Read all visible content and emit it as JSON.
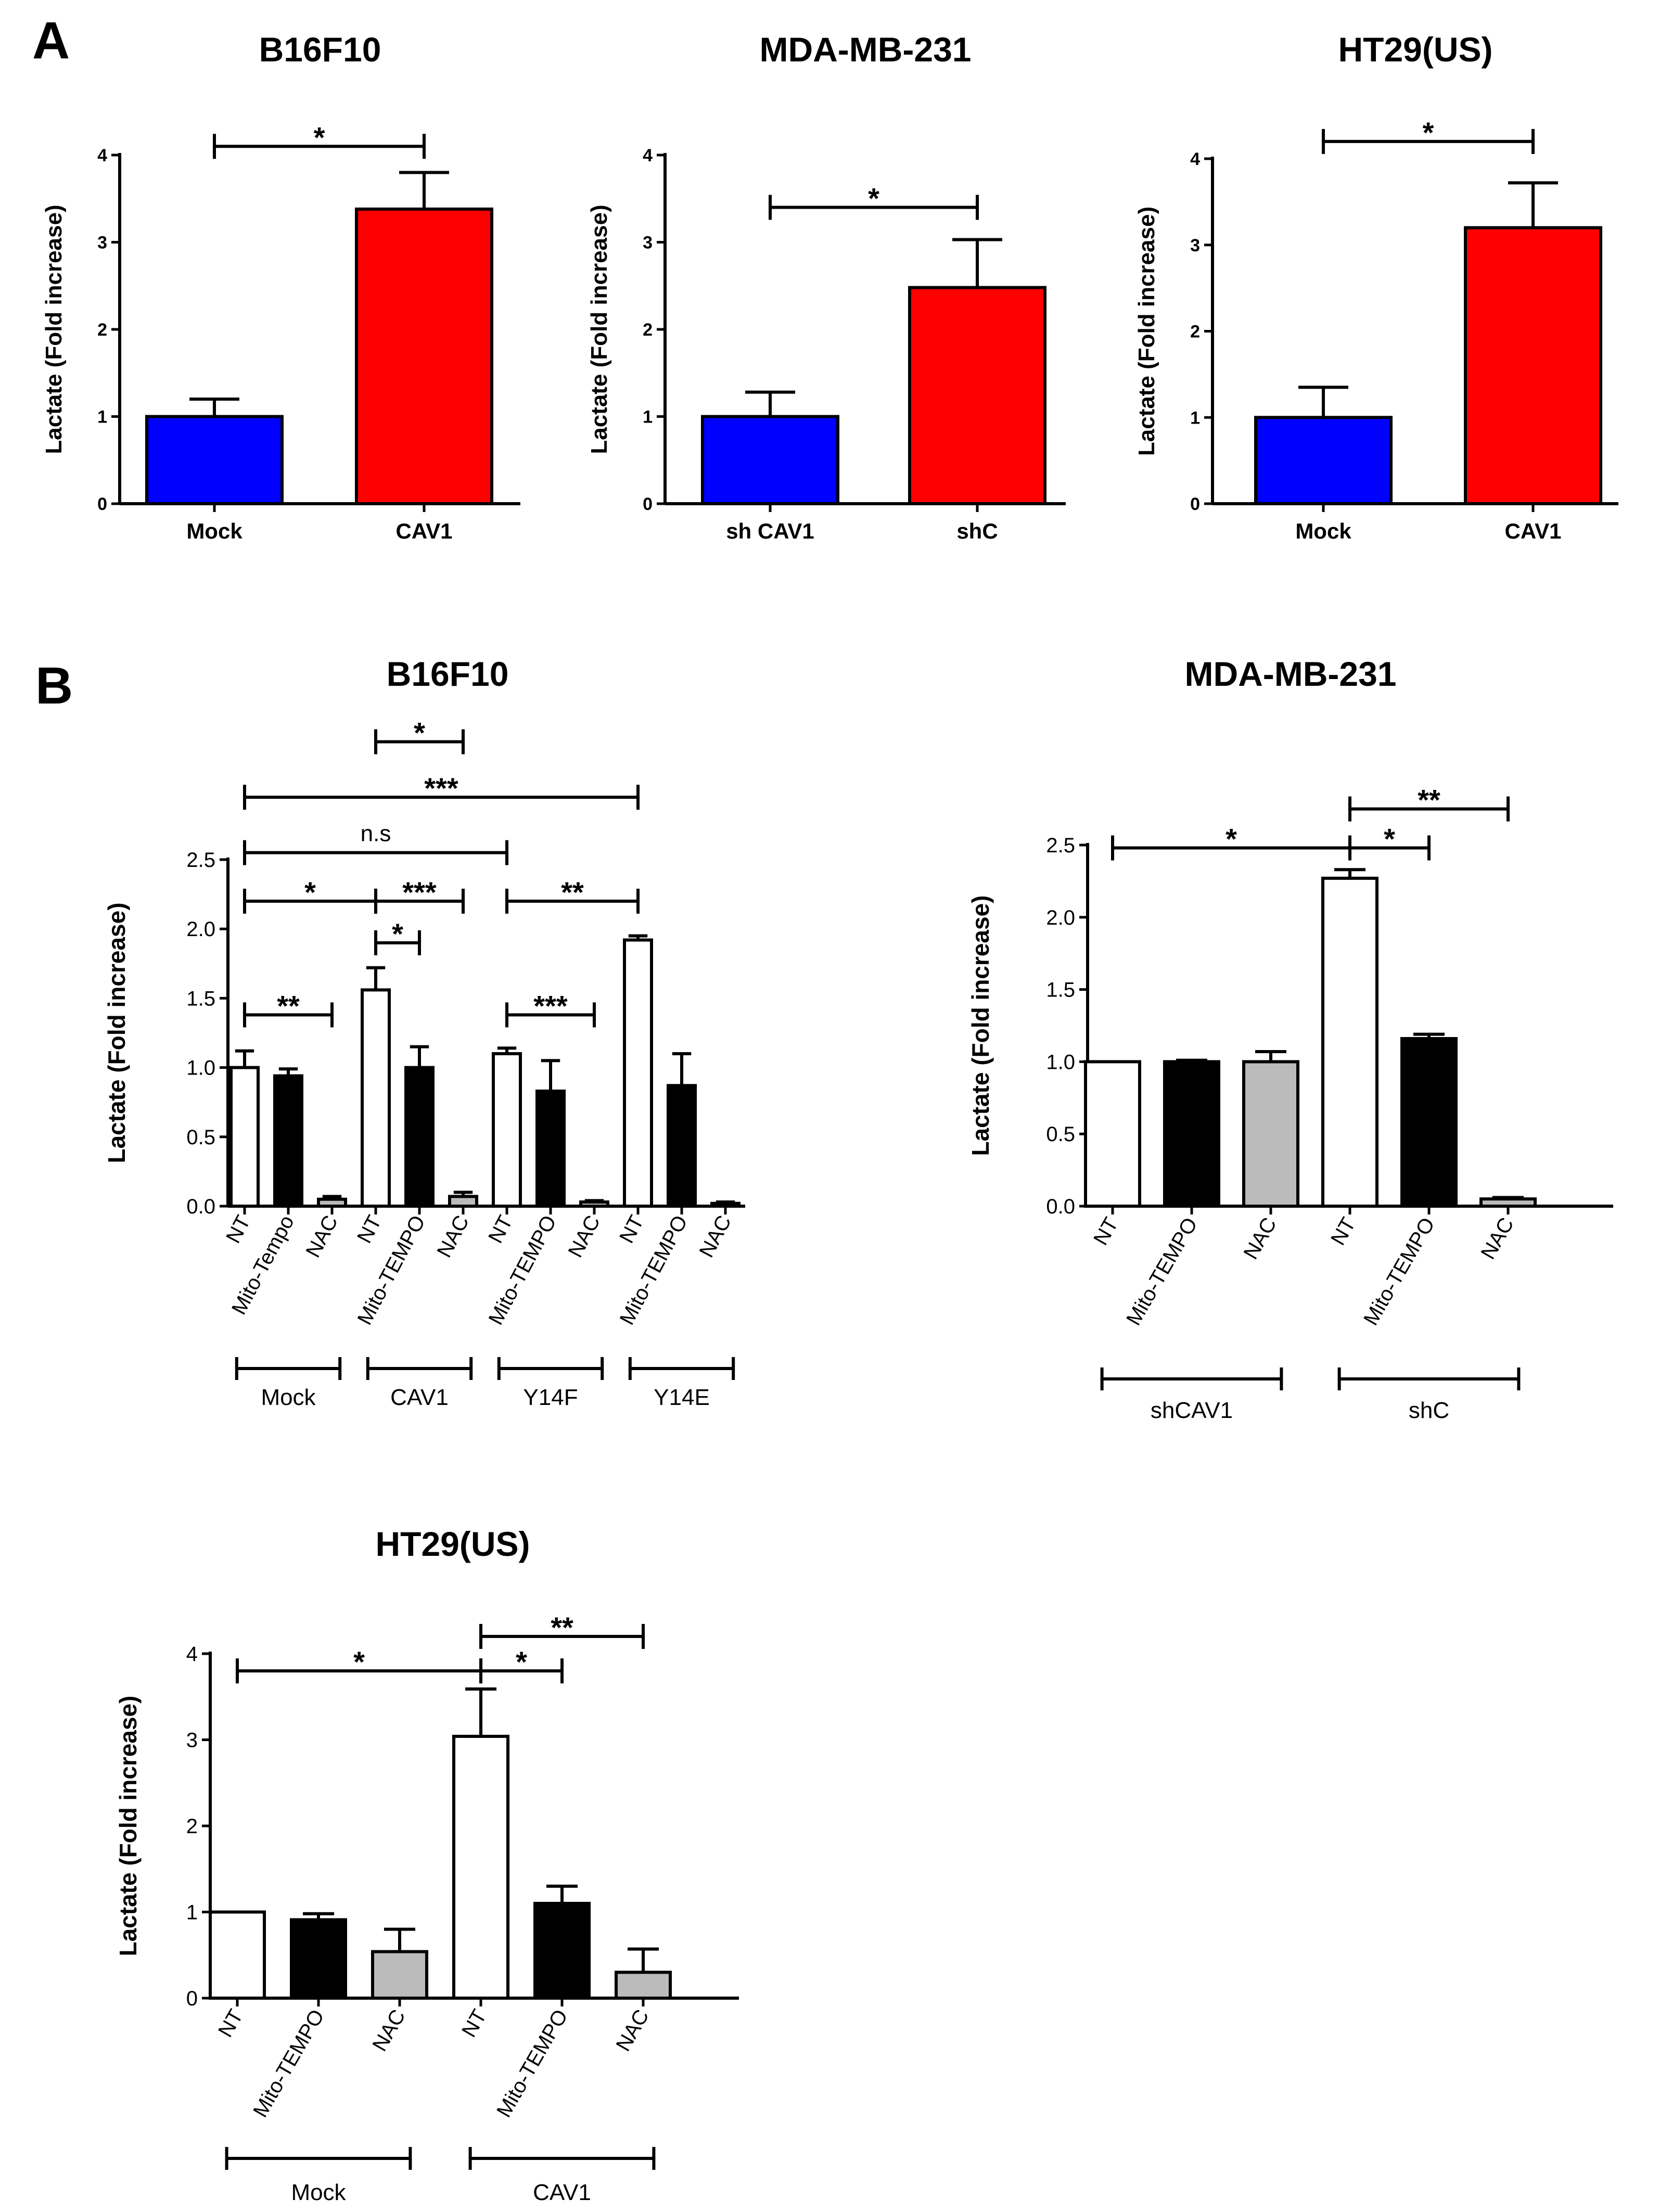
{
  "panel_labels": [
    "A",
    "B"
  ],
  "colors": {
    "blue": "#0000ff",
    "red": "#ff0000",
    "white": "#ffffff",
    "black": "#000000",
    "gray": "#bbbbbb"
  },
  "chart_data": [
    {
      "id": "A1",
      "type": "bar",
      "title": "B16F10",
      "ylabel": "Lactate (Fold increase)",
      "xlabel": "",
      "ylim": [
        0,
        4
      ],
      "yticks": [
        "0",
        "1",
        "2",
        "3",
        "4"
      ],
      "categories": [
        "Mock",
        "CAV1"
      ],
      "values": [
        1.0,
        3.38
      ],
      "errors": [
        0.2,
        0.42
      ],
      "fills": [
        "blue",
        "red"
      ],
      "significance": [
        {
          "from": 0,
          "to": 1,
          "level": 4.1,
          "label": "*"
        }
      ]
    },
    {
      "id": "A2",
      "type": "bar",
      "title": "MDA-MB-231",
      "ylabel": "Lactate (Fold increase)",
      "xlabel": "",
      "ylim": [
        0,
        4
      ],
      "yticks": [
        "0",
        "1",
        "2",
        "3",
        "4"
      ],
      "categories": [
        "sh CAV1",
        "shC"
      ],
      "values": [
        1.0,
        2.48
      ],
      "errors": [
        0.28,
        0.55
      ],
      "fills": [
        "blue",
        "red"
      ],
      "significance": [
        {
          "from": 0,
          "to": 1,
          "level": 3.4,
          "label": "*"
        }
      ]
    },
    {
      "id": "A3",
      "type": "bar",
      "title": "HT29(US)",
      "ylabel": "Lactate (Fold increase)",
      "xlabel": "",
      "ylim": [
        0,
        4
      ],
      "yticks": [
        "0",
        "1",
        "2",
        "3",
        "4"
      ],
      "categories": [
        "Mock",
        "CAV1"
      ],
      "values": [
        1.0,
        3.2
      ],
      "errors": [
        0.35,
        0.52
      ],
      "fills": [
        "blue",
        "red"
      ],
      "significance": [
        {
          "from": 0,
          "to": 1,
          "level": 4.2,
          "label": "*"
        }
      ]
    },
    {
      "id": "B1",
      "type": "bar",
      "title": "B16F10",
      "ylabel": "Lactate (Fold increase)",
      "xlabel": "",
      "ylim": [
        0,
        2.5
      ],
      "yticks": [
        "0.0",
        "0.5",
        "1.0",
        "1.5",
        "2.0",
        "2.5"
      ],
      "categories": [
        "NT",
        "Mito-Tempo",
        "NAC",
        "NT",
        "Mito-TEMPO",
        "NAC",
        "NT",
        "Mito-TEMPO",
        "NAC",
        "NT",
        "Mito-TEMPO",
        "NAC"
      ],
      "values": [
        1.0,
        0.94,
        0.05,
        1.56,
        1.0,
        0.07,
        1.1,
        0.83,
        0.03,
        1.92,
        0.87,
        0.02
      ],
      "errors": [
        0.12,
        0.05,
        0.02,
        0.16,
        0.15,
        0.03,
        0.04,
        0.22,
        0.01,
        0.03,
        0.23,
        0.01
      ],
      "fills": [
        "white",
        "black",
        "gray",
        "white",
        "black",
        "gray",
        "white",
        "black",
        "gray",
        "white",
        "black",
        "gray"
      ],
      "groups": [
        {
          "label": "Mock",
          "from": 0,
          "to": 2
        },
        {
          "label": "CAV1",
          "from": 3,
          "to": 5
        },
        {
          "label": "Y14F",
          "from": 6,
          "to": 8
        },
        {
          "label": "Y14E",
          "from": 9,
          "to": 11
        }
      ],
      "significance": [
        {
          "from": 0,
          "to": 2,
          "level": 1.38,
          "label": "**"
        },
        {
          "from": 3,
          "to": 4,
          "level": 1.9,
          "label": "*"
        },
        {
          "from": 0,
          "to": 3,
          "level": 2.2,
          "label": "*"
        },
        {
          "from": 3,
          "to": 5,
          "level": 2.2,
          "label": "***"
        },
        {
          "from": 6,
          "to": 8,
          "level": 1.38,
          "label": "***"
        },
        {
          "from": 6,
          "to": 9,
          "level": 2.2,
          "label": "**"
        },
        {
          "from": 0,
          "to": 6,
          "level": 2.55,
          "label": "n.s"
        },
        {
          "from": 0,
          "to": 9,
          "level": 2.95,
          "label": "***"
        },
        {
          "from": 3,
          "to": 5,
          "level": 3.35,
          "label": "*"
        }
      ]
    },
    {
      "id": "B2",
      "type": "bar",
      "title": "MDA-MB-231",
      "ylabel": "Lactate (Fold increase)",
      "xlabel": "",
      "ylim": [
        0,
        2.5
      ],
      "yticks": [
        "0.0",
        "0.5",
        "1.0",
        "1.5",
        "2.0",
        "2.5"
      ],
      "categories": [
        "NT",
        "Mito-TEMPO",
        "NAC",
        "NT",
        "Mito-TEMPO",
        "NAC"
      ],
      "values": [
        1.0,
        1.0,
        1.0,
        2.27,
        1.16,
        0.05
      ],
      "errors": [
        0.0,
        0.01,
        0.07,
        0.06,
        0.03,
        0.01
      ],
      "fills": [
        "white",
        "black",
        "gray",
        "white",
        "black",
        "gray"
      ],
      "groups": [
        {
          "label": "shCAV1",
          "from": 0,
          "to": 2
        },
        {
          "label": "shC",
          "from": 3,
          "to": 5
        }
      ],
      "significance": [
        {
          "from": 0,
          "to": 3,
          "level": 2.48,
          "label": "*"
        },
        {
          "from": 3,
          "to": 4,
          "level": 2.48,
          "label": "*"
        },
        {
          "from": 3,
          "to": 5,
          "level": 2.75,
          "label": "**"
        }
      ]
    },
    {
      "id": "B3",
      "type": "bar",
      "title": "HT29(US)",
      "ylabel": "Lactate (Fold increase)",
      "xlabel": "",
      "ylim": [
        0,
        4
      ],
      "yticks": [
        "0",
        "1",
        "2",
        "3",
        "4"
      ],
      "categories": [
        "NT",
        "Mito-TEMPO",
        "NAC",
        "NT",
        "Mito-TEMPO",
        "NAC"
      ],
      "values": [
        1.0,
        0.91,
        0.54,
        3.04,
        1.1,
        0.3
      ],
      "errors": [
        0.0,
        0.07,
        0.26,
        0.55,
        0.2,
        0.27
      ],
      "fills": [
        "white",
        "black",
        "gray",
        "white",
        "black",
        "gray"
      ],
      "groups": [
        {
          "label": "Mock",
          "from": 0,
          "to": 2
        },
        {
          "label": "CAV1",
          "from": 3,
          "to": 5
        }
      ],
      "significance": [
        {
          "from": 0,
          "to": 3,
          "level": 3.8,
          "label": "*"
        },
        {
          "from": 3,
          "to": 4,
          "level": 3.8,
          "label": "*"
        },
        {
          "from": 3,
          "to": 5,
          "level": 4.2,
          "label": "**"
        }
      ]
    }
  ]
}
